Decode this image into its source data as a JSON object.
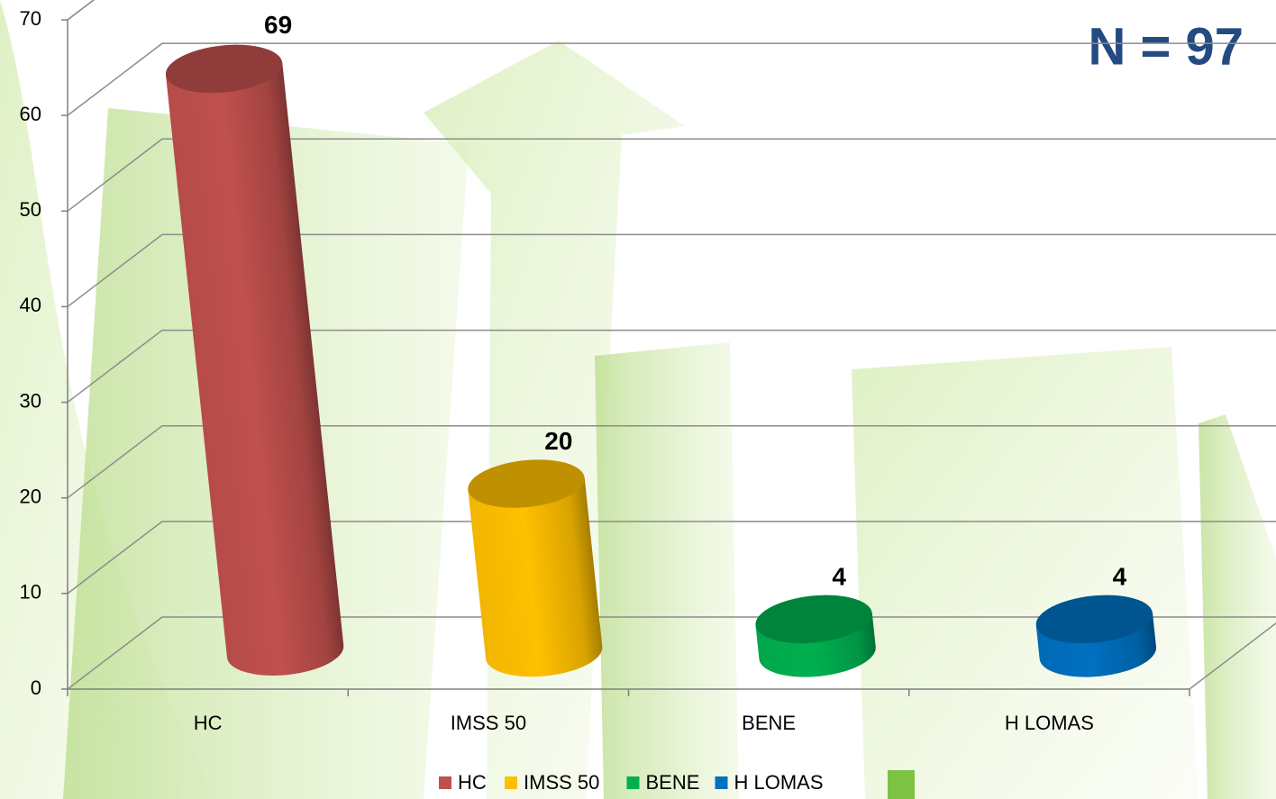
{
  "chart_data": {
    "type": "bar",
    "annotation": "N = 97",
    "categories": [
      "HC",
      "IMSS 50",
      "BENE",
      "H LOMAS"
    ],
    "values": [
      69,
      20,
      4,
      4
    ],
    "colors": [
      "#c0504d",
      "#ffc000",
      "#00b050",
      "#0070c0"
    ],
    "ylim": [
      0,
      70
    ],
    "yticks": [
      0,
      10,
      20,
      30,
      40,
      50,
      60,
      70
    ],
    "grid": true,
    "legend": "bottom"
  }
}
